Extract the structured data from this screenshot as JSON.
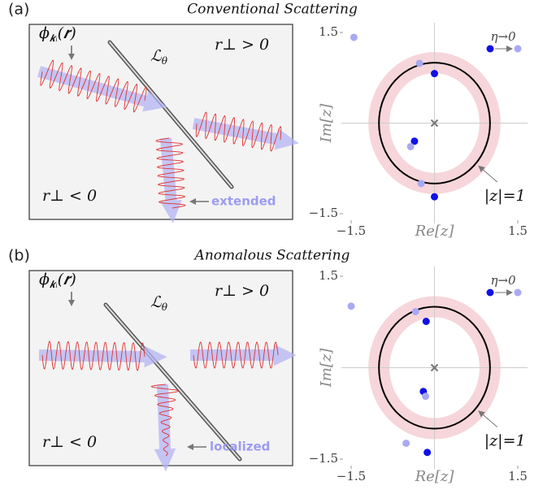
{
  "figure": {
    "panels": [
      {
        "label": "(a)",
        "title": "Conventional Scattering",
        "schematic": {
          "wavefunction": {
            "symbol": "ϕ",
            "subscript": "𝒌ᵢ",
            "argument": "(𝒓)"
          },
          "line": {
            "symbol": "ℒ",
            "subscript": "θ"
          },
          "upper_region": "r⊥ > 0",
          "lower_region": "r⊥ < 0",
          "wave_label": "extended"
        }
      },
      {
        "label": "(b)",
        "title": "Anomalous Scattering",
        "schematic": {
          "wavefunction": {
            "symbol": "ϕ",
            "subscript": "𝒌ᵢ",
            "argument": "(𝒓)"
          },
          "line": {
            "symbol": "ℒ",
            "subscript": "θ"
          },
          "upper_region": "r⊥ > 0",
          "lower_region": "r⊥ < 0",
          "wave_label": "localized"
        }
      }
    ]
  },
  "chart_data": [
    {
      "type": "scatter",
      "xlabel": "Re[z]",
      "ylabel": "Im[z]",
      "xlim": [
        -1.5,
        1.5
      ],
      "ylim": [
        -1.5,
        1.5
      ],
      "xticks": [
        {
          "value": -1.5,
          "label": "−1.5"
        },
        1.5
      ],
      "yticks": [
        {
          "value": -1.5,
          "label": "−1.5"
        },
        1.5
      ],
      "series": [
        {
          "color": "#1010e8",
          "x": [
            0.0,
            -0.36,
            0.0
          ],
          "values": [
            0.82,
            -0.3,
            -1.22
          ]
        },
        {
          "color": "#a9a9f2",
          "x": [
            -1.45,
            -0.27,
            -0.43,
            -0.24
          ],
          "values": [
            1.42,
            0.99,
            -0.39,
            -1.0
          ]
        }
      ],
      "legend_label": "η→0",
      "unit_circle": {
        "radius": 1,
        "label": "|z|=1"
      }
    },
    {
      "type": "scatter",
      "xlabel": "Re[z]",
      "ylabel": "Im[z]",
      "xlim": [
        -1.5,
        1.5
      ],
      "ylim": [
        -1.5,
        1.5
      ],
      "xticks": [
        {
          "value": -1.5,
          "label": "−1.5"
        },
        1.5
      ],
      "yticks": [
        {
          "value": -1.5,
          "label": "−1.5"
        },
        1.5
      ],
      "series": [
        {
          "color": "#1010e8",
          "x": [
            -0.15,
            -0.2,
            -0.13
          ],
          "values": [
            0.76,
            -0.39,
            -1.39
          ]
        },
        {
          "color": "#a9a9f2",
          "x": [
            -1.5,
            -0.34,
            -0.16,
            -0.51
          ],
          "values": [
            1.01,
            0.92,
            -0.47,
            -1.24
          ]
        }
      ],
      "legend_label": "η→0",
      "unit_circle": {
        "radius": 1,
        "label": "|z|=1"
      }
    }
  ]
}
